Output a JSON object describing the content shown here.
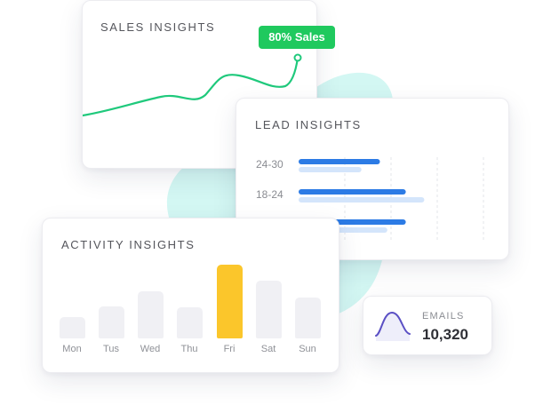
{
  "colors": {
    "blob": "#d3f7f3",
    "sales_line": "#1fc97c",
    "badge": "#1fc95e",
    "lead_primary": "#2c7be5",
    "lead_secondary": "#d4e5fb",
    "activity_bar": "#f0f0f4",
    "activity_highlight": "#fbc62b",
    "emails_line": "#5a4fc4",
    "emails_fill": "#eeeefa"
  },
  "sales": {
    "title": "SALES INSIGHTS",
    "badge": "80% Sales",
    "trend_icon": "sales-trend-line"
  },
  "lead": {
    "title": "LEAD INSIGHTS",
    "rows": [
      {
        "label": "24-30",
        "primary": 0.44,
        "secondary": 0.34
      },
      {
        "label": "18-24",
        "primary": 0.58,
        "secondary": 0.68
      },
      {
        "label": "",
        "primary": 0.58,
        "secondary": 0.48
      }
    ]
  },
  "activity": {
    "title": "ACTIVITY INSIGHTS",
    "days": [
      {
        "label": "Mon",
        "level": 0.29,
        "highlight": false
      },
      {
        "label": "Tus",
        "level": 0.43,
        "highlight": false
      },
      {
        "label": "Wed",
        "level": 0.64,
        "highlight": false
      },
      {
        "label": "Thu",
        "level": 0.42,
        "highlight": false
      },
      {
        "label": "Fri",
        "level": 1.0,
        "highlight": true
      },
      {
        "label": "Sat",
        "level": 0.78,
        "highlight": false
      },
      {
        "label": "Sun",
        "level": 0.56,
        "highlight": false
      }
    ]
  },
  "emails": {
    "label": "EMAILS",
    "value": "10,320",
    "icon": "bell-curve-icon"
  }
}
